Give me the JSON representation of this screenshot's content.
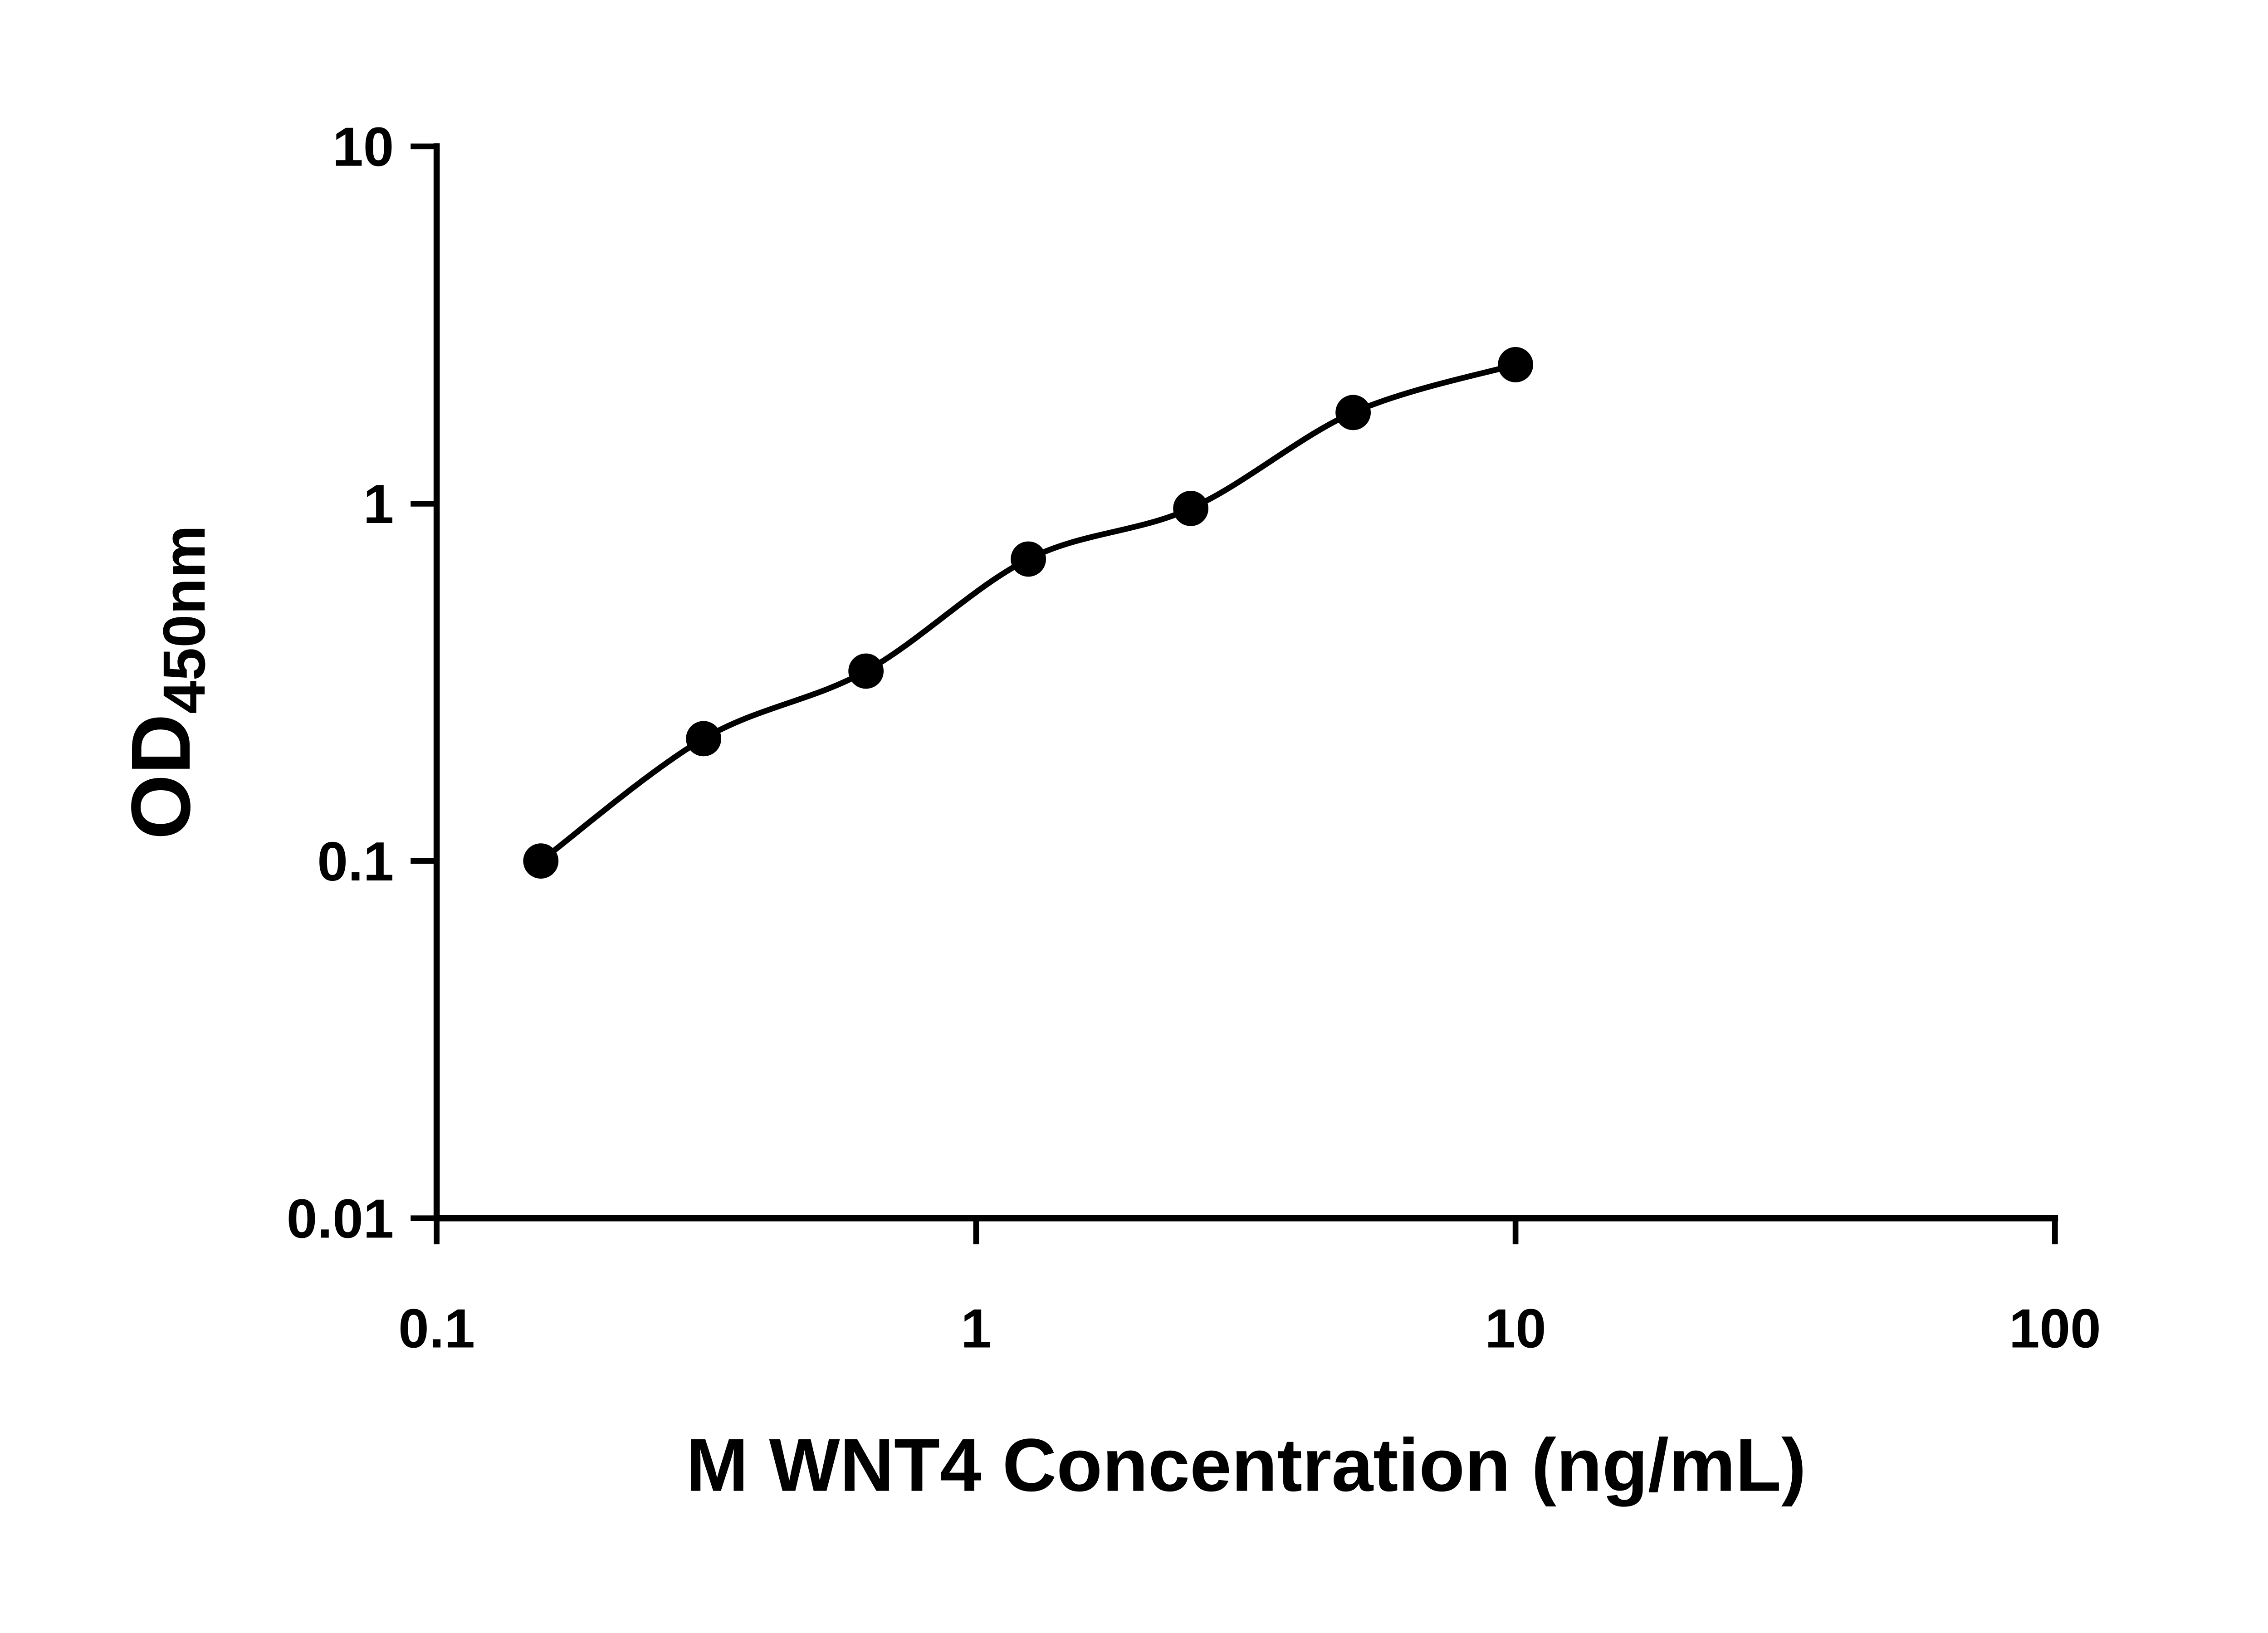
{
  "chart_data": {
    "type": "scatter",
    "curve": "smooth-fit-line",
    "title": "",
    "xlabel": "M WNT4 Concentration (ng/mL)",
    "ylabel_main": "OD",
    "ylabel_sub": "450nm",
    "x": [
      0.156,
      0.3125,
      0.625,
      1.25,
      2.5,
      5,
      10
    ],
    "y": [
      0.1,
      0.22,
      0.34,
      0.7,
      0.97,
      1.8,
      2.45
    ],
    "x_scale": "log",
    "y_scale": "log",
    "xlim": [
      0.1,
      100
    ],
    "ylim": [
      0.01,
      10
    ],
    "x_ticks": [
      0.1,
      1,
      10,
      100
    ],
    "x_tick_labels": [
      "0.1",
      "1",
      "10",
      "100"
    ],
    "y_ticks": [
      0.01,
      0.1,
      1,
      10
    ],
    "y_tick_labels": [
      "0.01",
      "0.1",
      "1",
      "10"
    ],
    "grid": "off",
    "legend": "none",
    "marker_color": "#000000",
    "line_color": "#000000",
    "axis_color": "#000000",
    "background_color": "#ffffff"
  }
}
